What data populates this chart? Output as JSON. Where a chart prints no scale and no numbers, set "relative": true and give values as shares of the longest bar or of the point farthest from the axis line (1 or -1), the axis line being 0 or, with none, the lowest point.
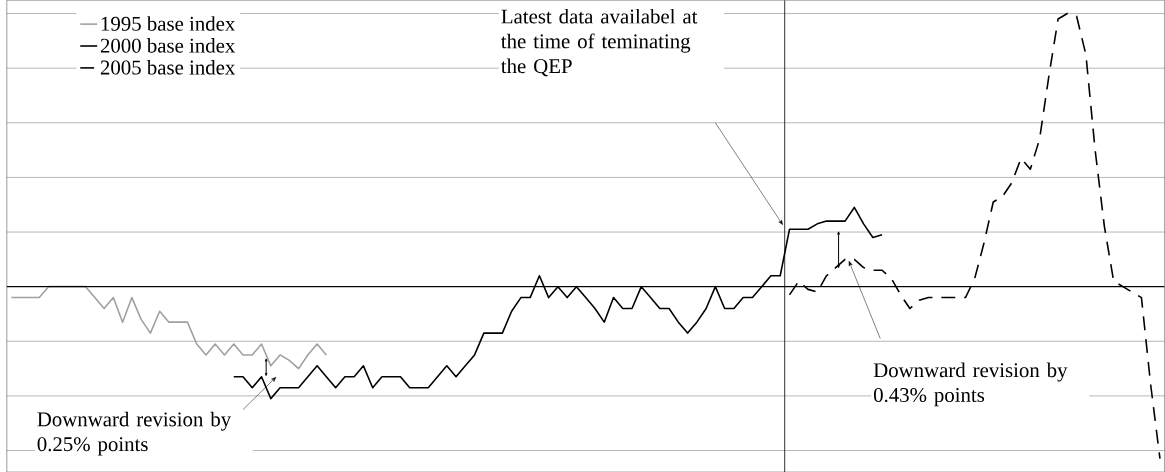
{
  "chart_data": {
    "type": "line",
    "relative": true,
    "grid": "y",
    "legend": "top left",
    "categories": [
      null,
      null,
      null,
      null,
      null,
      null,
      null,
      null,
      null,
      null,
      null,
      null,
      null,
      null,
      null,
      null,
      null,
      null,
      null,
      null,
      null,
      null,
      null,
      null,
      null,
      null,
      null,
      null,
      null,
      null,
      null,
      null,
      null,
      null,
      null,
      null,
      null,
      null,
      null,
      null,
      null,
      null,
      null,
      null,
      null,
      null,
      null,
      null,
      null,
      null,
      null,
      null,
      null,
      null,
      null,
      null,
      null,
      null,
      null,
      null,
      null,
      null,
      null,
      null,
      null,
      null,
      null,
      null,
      null,
      null,
      null,
      null,
      null,
      null,
      null,
      null,
      null,
      null,
      null,
      null,
      null,
      null,
      null,
      null,
      null,
      null,
      null,
      null,
      null,
      null,
      null,
      null,
      null,
      null,
      null,
      null,
      null,
      null,
      null,
      null,
      null,
      null,
      null,
      null,
      null,
      null,
      null,
      null,
      null,
      null,
      null,
      null,
      null,
      null,
      null,
      null,
      null,
      null,
      null,
      null,
      null,
      null,
      null,
      null,
      null
    ],
    "series": [
      {
        "name": "1995 base index",
        "color": "#a0a0a0",
        "line_style": "solid",
        "values": [
          -0.04,
          -0.04,
          -0.04,
          -0.04,
          0.0,
          0.0,
          0.0,
          0.0,
          0.0,
          -0.04,
          -0.08,
          -0.04,
          -0.13,
          -0.04,
          -0.12,
          -0.17,
          -0.09,
          -0.13,
          -0.13,
          -0.13,
          -0.21,
          -0.25,
          -0.21,
          -0.25,
          -0.21,
          -0.25,
          -0.25,
          -0.21,
          -0.29,
          -0.25,
          -0.27,
          -0.3,
          -0.25,
          -0.21,
          -0.25,
          null,
          null,
          null,
          null,
          null,
          null,
          null,
          null,
          null,
          null,
          null,
          null,
          null,
          null,
          null,
          null,
          null,
          null,
          null,
          null,
          null,
          null,
          null,
          null,
          null,
          null,
          null,
          null,
          null,
          null,
          null,
          null,
          null,
          null,
          null,
          null,
          null,
          null,
          null,
          null,
          null,
          null,
          null,
          null,
          null,
          null,
          null,
          null,
          null,
          null,
          null,
          null,
          null,
          null,
          null,
          null,
          null,
          null,
          null,
          null,
          null,
          null,
          null,
          null,
          null,
          null,
          null,
          null,
          null,
          null,
          null,
          null,
          null,
          null,
          null,
          null,
          null,
          null,
          null,
          null,
          null,
          null,
          null,
          null,
          null,
          null,
          null,
          null,
          null,
          null
        ]
      },
      {
        "name": "2000 base index",
        "color": "#000000",
        "line_style": "solid",
        "values": [
          null,
          null,
          null,
          null,
          null,
          null,
          null,
          null,
          null,
          null,
          null,
          null,
          null,
          null,
          null,
          null,
          null,
          null,
          null,
          null,
          null,
          null,
          null,
          null,
          -0.33,
          -0.33,
          -0.37,
          -0.33,
          -0.41,
          -0.37,
          -0.37,
          -0.37,
          -0.33,
          -0.29,
          -0.33,
          -0.37,
          -0.33,
          -0.33,
          -0.29,
          -0.37,
          -0.33,
          -0.33,
          -0.33,
          -0.37,
          -0.37,
          -0.37,
          -0.33,
          -0.29,
          -0.33,
          -0.29,
          -0.25,
          -0.17,
          -0.17,
          -0.17,
          -0.09,
          -0.04,
          -0.04,
          0.04,
          -0.04,
          0.0,
          -0.04,
          0.0,
          -0.04,
          -0.08,
          -0.13,
          -0.04,
          -0.08,
          -0.08,
          0.0,
          -0.04,
          -0.08,
          -0.08,
          -0.13,
          -0.17,
          -0.13,
          -0.08,
          0.0,
          -0.08,
          -0.08,
          -0.04,
          -0.04,
          0.0,
          0.04,
          0.04,
          0.21,
          0.21,
          0.21,
          0.23,
          0.24,
          0.24,
          0.24,
          0.29,
          0.23,
          0.18,
          0.19,
          null,
          null,
          null,
          null,
          null,
          null,
          null,
          null,
          null,
          null,
          null,
          null,
          null,
          null,
          null,
          null,
          null,
          null,
          null,
          null,
          null,
          null,
          null,
          null,
          null,
          null,
          null,
          null,
          null,
          null
        ]
      },
      {
        "name": "2005 base index",
        "color": "#000000",
        "line_style": "dashed",
        "values": [
          null,
          null,
          null,
          null,
          null,
          null,
          null,
          null,
          null,
          null,
          null,
          null,
          null,
          null,
          null,
          null,
          null,
          null,
          null,
          null,
          null,
          null,
          null,
          null,
          null,
          null,
          null,
          null,
          null,
          null,
          null,
          null,
          null,
          null,
          null,
          null,
          null,
          null,
          null,
          null,
          null,
          null,
          null,
          null,
          null,
          null,
          null,
          null,
          null,
          null,
          null,
          null,
          null,
          null,
          null,
          null,
          null,
          null,
          null,
          null,
          null,
          null,
          null,
          null,
          null,
          null,
          null,
          null,
          null,
          null,
          null,
          null,
          null,
          null,
          null,
          null,
          null,
          null,
          null,
          null,
          null,
          null,
          null,
          null,
          -0.03,
          0.02,
          -0.01,
          -0.02,
          0.04,
          0.07,
          0.1,
          0.1,
          0.07,
          0.06,
          0.06,
          0.03,
          -0.03,
          -0.08,
          -0.05,
          -0.04,
          -0.04,
          -0.04,
          -0.04,
          -0.04,
          0.03,
          0.16,
          0.31,
          0.33,
          0.38,
          0.47,
          0.43,
          0.54,
          0.77,
          0.98,
          1.0,
          0.99,
          0.85,
          0.5,
          0.22,
          0.02,
          0.0,
          -0.02,
          -0.04,
          -0.36,
          -0.63
        ]
      }
    ],
    "annotations": [
      "Latest data availabel at the time of teminating the QEP",
      "Downward revision by 0.43% points",
      "Downward revision by 0.25% points"
    ]
  }
}
